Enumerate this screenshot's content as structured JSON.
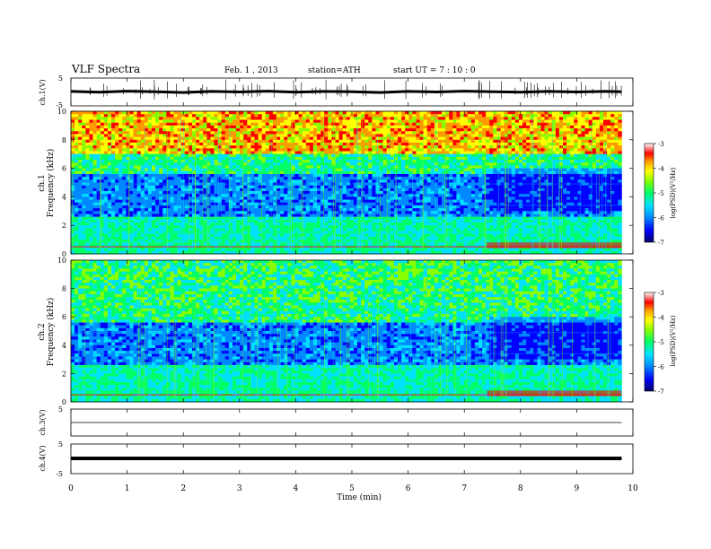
{
  "header": {
    "title": "VLF Spectra",
    "date": "Feb. 1 , 2013",
    "station": "station=ATH",
    "start": "start UT = 7 : 10 : 0"
  },
  "colors": {
    "scale": [
      "#000066",
      "#0000ff",
      "#0088ff",
      "#00e0ff",
      "#00ff66",
      "#88ff00",
      "#ffff00",
      "#ff9900",
      "#ff0000",
      "#ffffff"
    ],
    "trace": "#000000"
  },
  "chart_data": [
    {
      "type": "line",
      "ylabel": "ch.1(V)",
      "xlim": [
        0,
        10
      ],
      "ylim": [
        -5,
        5
      ],
      "yticks": [
        "5",
        "-5"
      ],
      "x": [
        0,
        0.5,
        1,
        1.5,
        2,
        2.5,
        3,
        3.5,
        4,
        4.5,
        5,
        5.5,
        6,
        6.5,
        7,
        7.5,
        8,
        8.5,
        9,
        9.5,
        9.8
      ],
      "y": [
        0.2,
        -0.1,
        0.3,
        0.1,
        -0.2,
        0.2,
        0.0,
        0.3,
        -0.1,
        0.2,
        0.1,
        -0.2,
        0.2,
        0.0,
        0.3,
        0.1,
        -0.1,
        0.2,
        0.0,
        0.2,
        0.1
      ]
    },
    {
      "type": "heatmap",
      "channel": "ch.1",
      "ylabel": "Frequency (kHz)",
      "xlim": [
        0,
        10
      ],
      "ylim": [
        0,
        10
      ],
      "yticks": [
        "0",
        "2",
        "4",
        "6",
        "8",
        "10"
      ],
      "colorbar": {
        "label": "log(PSD)(V²/Hz)",
        "ticks": [
          "-3",
          "-4",
          "-5",
          "-6",
          "-7"
        ],
        "range": [
          -7,
          -3
        ]
      },
      "features": {
        "data_end_min": 9.8,
        "transition_min": 7.4
      }
    },
    {
      "type": "heatmap",
      "channel": "ch.2",
      "ylabel": "Frequency (kHz)",
      "xlim": [
        0,
        10
      ],
      "ylim": [
        0,
        10
      ],
      "yticks": [
        "0",
        "2",
        "4",
        "6",
        "8",
        "10"
      ],
      "colorbar": {
        "label": "log(PSD)(V²/Hz)",
        "ticks": [
          "-3",
          "-4",
          "-5",
          "-6",
          "-7"
        ],
        "range": [
          -7,
          -3
        ]
      },
      "features": {
        "data_end_min": 9.8,
        "transition_min": 7.4
      }
    },
    {
      "type": "line",
      "ylabel": "ch.3(V)",
      "xlim": [
        0,
        10
      ],
      "ylim": [
        -5,
        5
      ],
      "yticks": [
        "5"
      ],
      "x": [
        0,
        9.8
      ],
      "y": [
        0,
        0
      ]
    },
    {
      "type": "line",
      "ylabel": "ch.4(V)",
      "xlim": [
        0,
        10
      ],
      "ylim": [
        -5,
        5
      ],
      "yticks": [
        "5",
        "-5"
      ],
      "x": [
        0,
        9.8
      ],
      "y": [
        0,
        0
      ]
    }
  ],
  "xaxis": {
    "label": "Time (min)",
    "ticks": [
      "0",
      "1",
      "2",
      "3",
      "4",
      "5",
      "6",
      "7",
      "8",
      "9",
      "10"
    ]
  }
}
